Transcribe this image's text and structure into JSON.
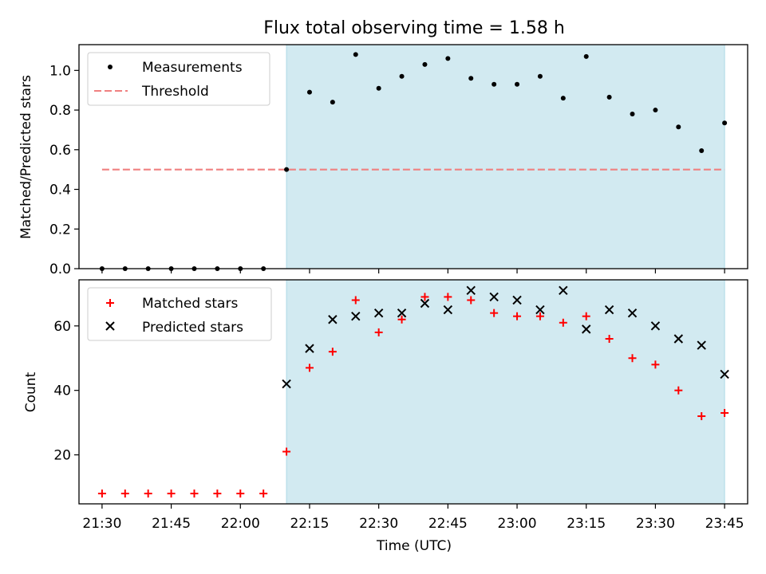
{
  "title": "Flux total observing time = 1.58 h",
  "xlabel": "Time (UTC)",
  "x_tick_labels": [
    "21:30",
    "21:45",
    "22:00",
    "22:15",
    "22:30",
    "22:45",
    "23:00",
    "23:15",
    "23:30",
    "23:45"
  ],
  "colors": {
    "shade": "#add8e6",
    "threshold": "#f08080",
    "matched": "#ff0000",
    "predicted": "#000000",
    "measurement": "#000000"
  },
  "chart_data": [
    {
      "type": "scatter",
      "panel": "top",
      "ylabel": "Matched/Predicted stars",
      "ylim": [
        0.0,
        1.13
      ],
      "y_ticks": [
        0.0,
        0.2,
        0.4,
        0.6,
        0.8,
        1.0
      ],
      "y_tick_labels": [
        "0.0",
        "0.2",
        "0.4",
        "0.6",
        "0.8",
        "1.0"
      ],
      "xlim": [
        "21:25",
        "23:50"
      ],
      "shaded_region": [
        "22:10",
        "23:45"
      ],
      "legend_position": "upper-left",
      "series": [
        {
          "name": "Measurements",
          "marker": "dot",
          "x": [
            "21:30",
            "21:35",
            "21:40",
            "21:45",
            "21:50",
            "21:55",
            "22:00",
            "22:05",
            "22:10",
            "22:15",
            "22:20",
            "22:25",
            "22:30",
            "22:35",
            "22:40",
            "22:45",
            "22:50",
            "22:55",
            "23:00",
            "23:05",
            "23:10",
            "23:15",
            "23:20",
            "23:25",
            "23:30",
            "23:35",
            "23:40",
            "23:45"
          ],
          "y": [
            0,
            0,
            0,
            0,
            0,
            0,
            0,
            0,
            0.5,
            0.89,
            0.84,
            1.08,
            0.91,
            0.97,
            1.03,
            1.06,
            0.96,
            0.93,
            0.93,
            0.97,
            0.86,
            1.07,
            0.865,
            0.78,
            0.8,
            0.715,
            0.595,
            0.735
          ]
        },
        {
          "name": "Threshold",
          "marker": "dashed-line",
          "x": [
            "21:30",
            "23:45"
          ],
          "y": [
            0.5,
            0.5
          ]
        }
      ]
    },
    {
      "type": "scatter",
      "panel": "bottom",
      "ylabel": "Count",
      "ylim": [
        4.8,
        74.3
      ],
      "y_ticks": [
        20,
        40,
        60
      ],
      "y_tick_labels": [
        "20",
        "40",
        "60"
      ],
      "xlim": [
        "21:25",
        "23:50"
      ],
      "shaded_region": [
        "22:10",
        "23:45"
      ],
      "legend_position": "upper-left",
      "series": [
        {
          "name": "Matched stars",
          "marker": "plus",
          "x": [
            "21:30",
            "21:35",
            "21:40",
            "21:45",
            "21:50",
            "21:55",
            "22:00",
            "22:05",
            "22:10",
            "22:15",
            "22:20",
            "22:25",
            "22:30",
            "22:35",
            "22:40",
            "22:45",
            "22:50",
            "22:55",
            "23:00",
            "23:05",
            "23:10",
            "23:15",
            "23:20",
            "23:25",
            "23:30",
            "23:35",
            "23:40",
            "23:45"
          ],
          "y": [
            8,
            8,
            8,
            8,
            8,
            8,
            8,
            8,
            21,
            47,
            52,
            68,
            58,
            62,
            69,
            69,
            68,
            64,
            63,
            63,
            61,
            63,
            56,
            50,
            48,
            40,
            32,
            33
          ]
        },
        {
          "name": "Predicted stars",
          "marker": "x",
          "x": [
            "22:10",
            "22:15",
            "22:20",
            "22:25",
            "22:30",
            "22:35",
            "22:40",
            "22:45",
            "22:50",
            "22:55",
            "23:00",
            "23:05",
            "23:10",
            "23:15",
            "23:20",
            "23:25",
            "23:30",
            "23:35",
            "23:40",
            "23:45"
          ],
          "y": [
            42,
            53,
            62,
            63,
            64,
            64,
            67,
            65,
            71,
            69,
            68,
            65,
            71,
            59,
            65,
            64,
            60,
            56,
            54,
            45
          ]
        }
      ]
    }
  ]
}
